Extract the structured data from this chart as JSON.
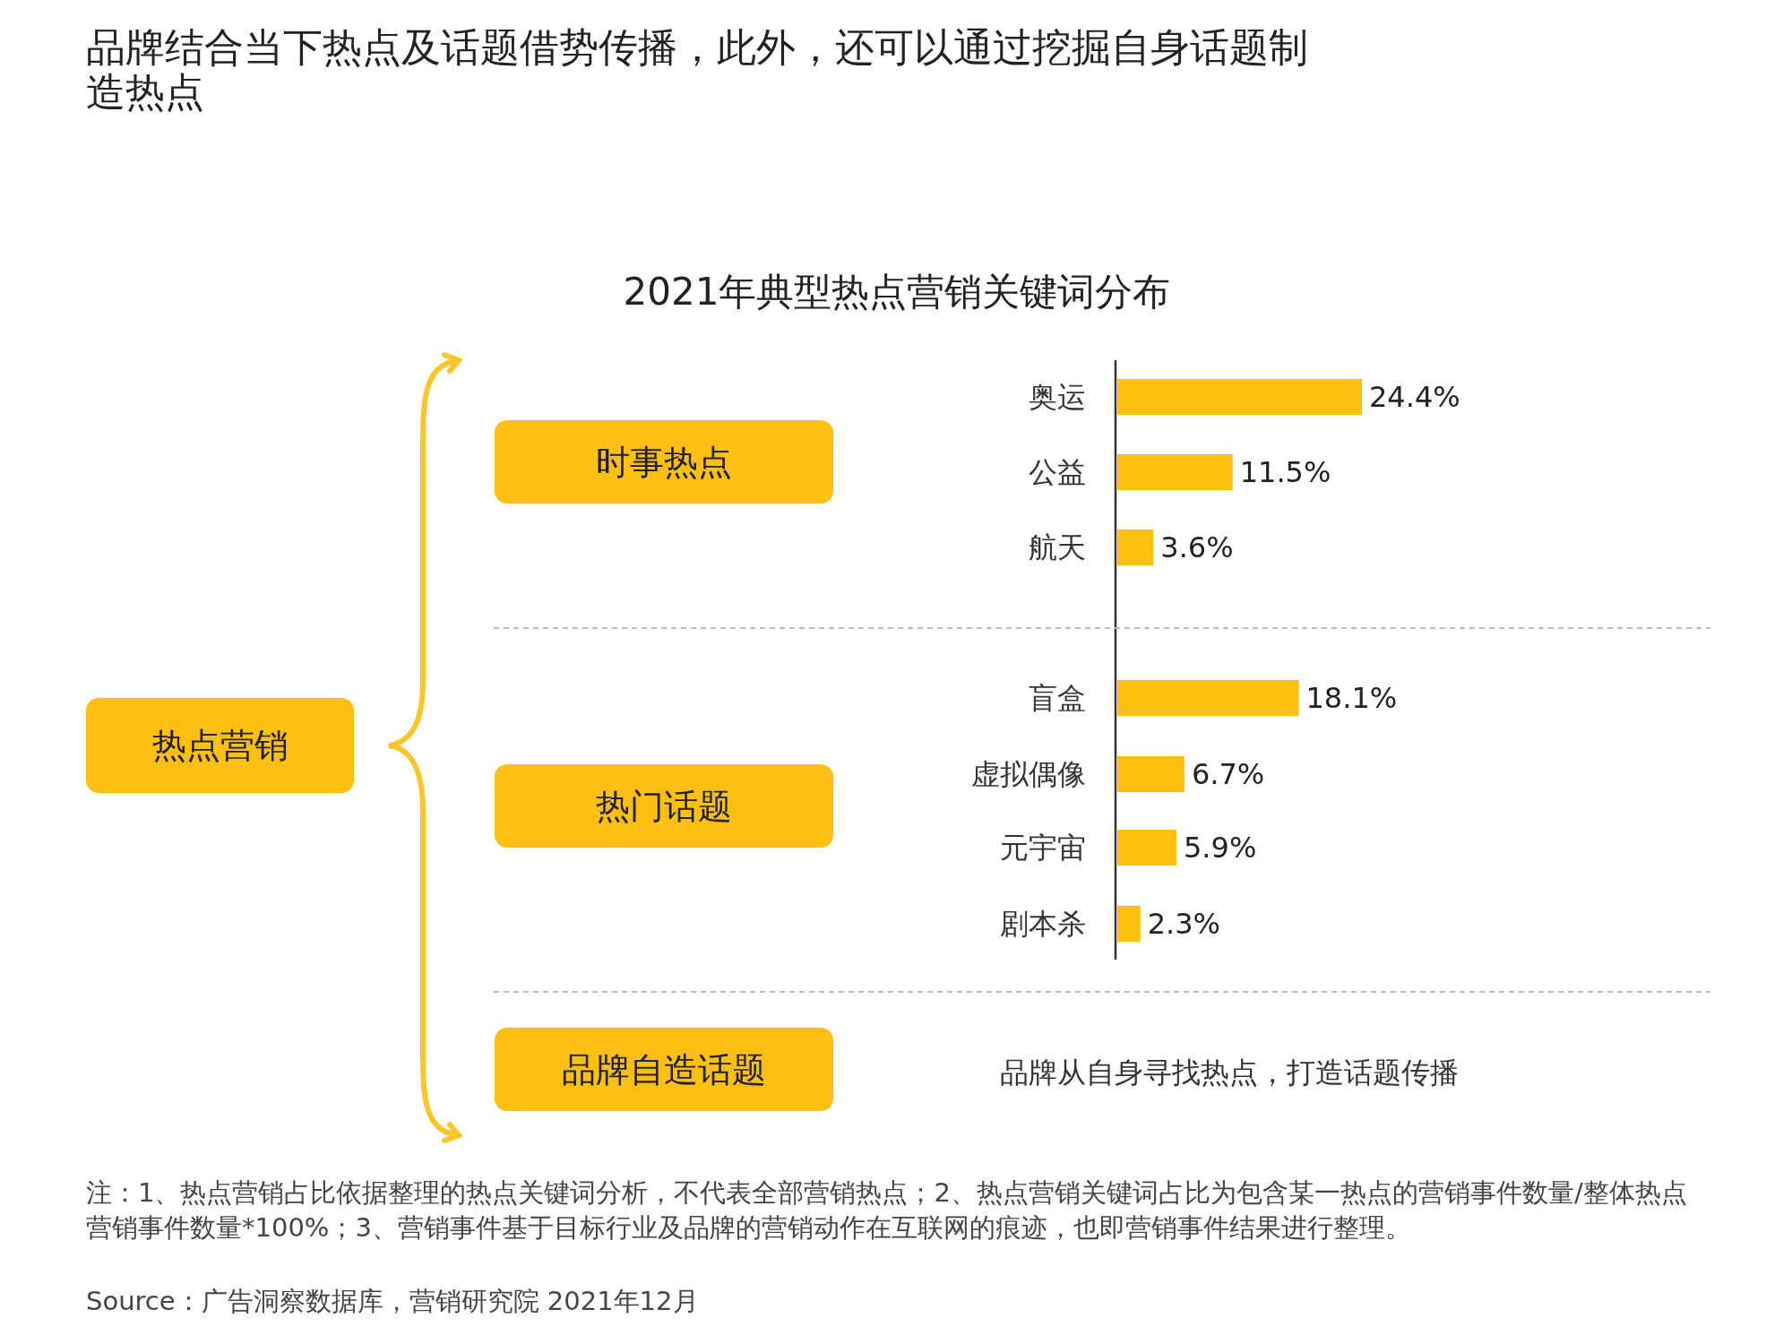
{
  "chart_data": {
    "type": "bar",
    "orientation": "horizontal",
    "title": "品牌结合当下热点及话题借势传播，此外，还可以通过挖掘自身话题制造热点",
    "subtitle": "2021年典型热点营销关键词分布",
    "categories": [
      "奥运",
      "公益",
      "航天",
      "盲盒",
      "虚拟偶像",
      "元宇宙",
      "剧本杀"
    ],
    "values": [
      24.4,
      11.5,
      3.6,
      18.1,
      6.7,
      5.9,
      2.3
    ],
    "value_labels": [
      "24.4%",
      "11.5%",
      "3.6%",
      "18.1%",
      "6.7%",
      "5.9%",
      "2.3%"
    ],
    "color": "#fcc010",
    "annotations": [
      "热点营销",
      "时事热点",
      "热门话题",
      "品牌自造话题",
      "品牌从自身寻找热点，打造话题传播",
      "注：1、热点营销占比依据整理的热点关键词分析，不代表全部营销热点；2、热点营销关键词占比为包含某一热点的营销事件数量/整体热点营销事件数量*100%；3、营销事件基于目标行业及品牌的营销动作在互联网的痕迹，也即营销事件结果进行整理。",
      "Source：广告洞察数据库，营销研究院 2021年12月"
    ]
  }
}
